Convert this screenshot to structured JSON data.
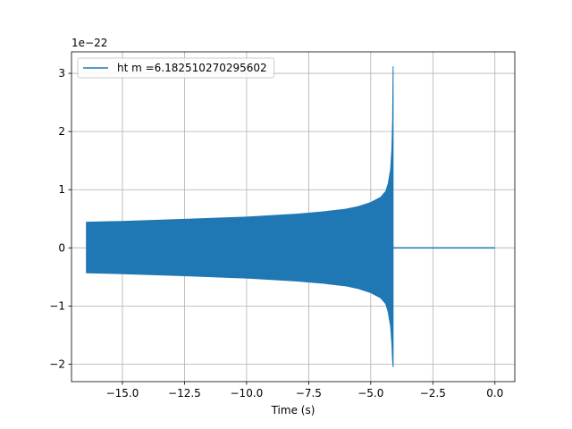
{
  "chart_data": {
    "type": "line",
    "title": "",
    "xlabel": "Time (s)",
    "ylabel": "",
    "y_scale_label": "1e−22",
    "xlim": [
      -17.05,
      0.8
    ],
    "ylim": [
      -2.3,
      3.37
    ],
    "x_ticks": [
      -15.0,
      -12.5,
      -10.0,
      -7.5,
      -5.0,
      -2.5,
      0.0
    ],
    "x_tick_labels": [
      "−15.0",
      "−12.5",
      "−10.0",
      "−7.5",
      "−5.0",
      "−2.5",
      "0.0"
    ],
    "y_ticks": [
      -2,
      -1,
      0,
      1,
      2,
      3
    ],
    "y_tick_labels": [
      "−2",
      "−1",
      "0",
      "1",
      "2",
      "3"
    ],
    "grid": true,
    "legend_position": "top-left",
    "series": [
      {
        "name": "ht m =6.182510270295602",
        "color": "#1f77b4",
        "signal_start": -16.45,
        "merger_time": -4.1,
        "end_time": 0.0,
        "envelope_upper": [
          [
            -16.45,
            0.44
          ],
          [
            -15.0,
            0.455
          ],
          [
            -12.5,
            0.49
          ],
          [
            -10.0,
            0.53
          ],
          [
            -8.0,
            0.58
          ],
          [
            -7.0,
            0.615
          ],
          [
            -6.0,
            0.665
          ],
          [
            -5.5,
            0.71
          ],
          [
            -5.0,
            0.78
          ],
          [
            -4.6,
            0.87
          ],
          [
            -4.4,
            0.97
          ],
          [
            -4.3,
            1.1
          ],
          [
            -4.2,
            1.35
          ],
          [
            -4.15,
            1.7
          ],
          [
            -4.12,
            2.2
          ],
          [
            -4.1,
            3.12
          ]
        ],
        "envelope_lower": [
          [
            -16.45,
            -0.43
          ],
          [
            -15.0,
            -0.445
          ],
          [
            -12.5,
            -0.48
          ],
          [
            -10.0,
            -0.52
          ],
          [
            -8.0,
            -0.57
          ],
          [
            -7.0,
            -0.605
          ],
          [
            -6.0,
            -0.655
          ],
          [
            -5.5,
            -0.7
          ],
          [
            -5.0,
            -0.77
          ],
          [
            -4.6,
            -0.86
          ],
          [
            -4.4,
            -0.96
          ],
          [
            -4.3,
            -1.1
          ],
          [
            -4.2,
            -1.35
          ],
          [
            -4.15,
            -1.65
          ],
          [
            -4.12,
            -1.95
          ],
          [
            -4.1,
            -2.05
          ]
        ],
        "post_merger_value": 0.0
      }
    ]
  }
}
